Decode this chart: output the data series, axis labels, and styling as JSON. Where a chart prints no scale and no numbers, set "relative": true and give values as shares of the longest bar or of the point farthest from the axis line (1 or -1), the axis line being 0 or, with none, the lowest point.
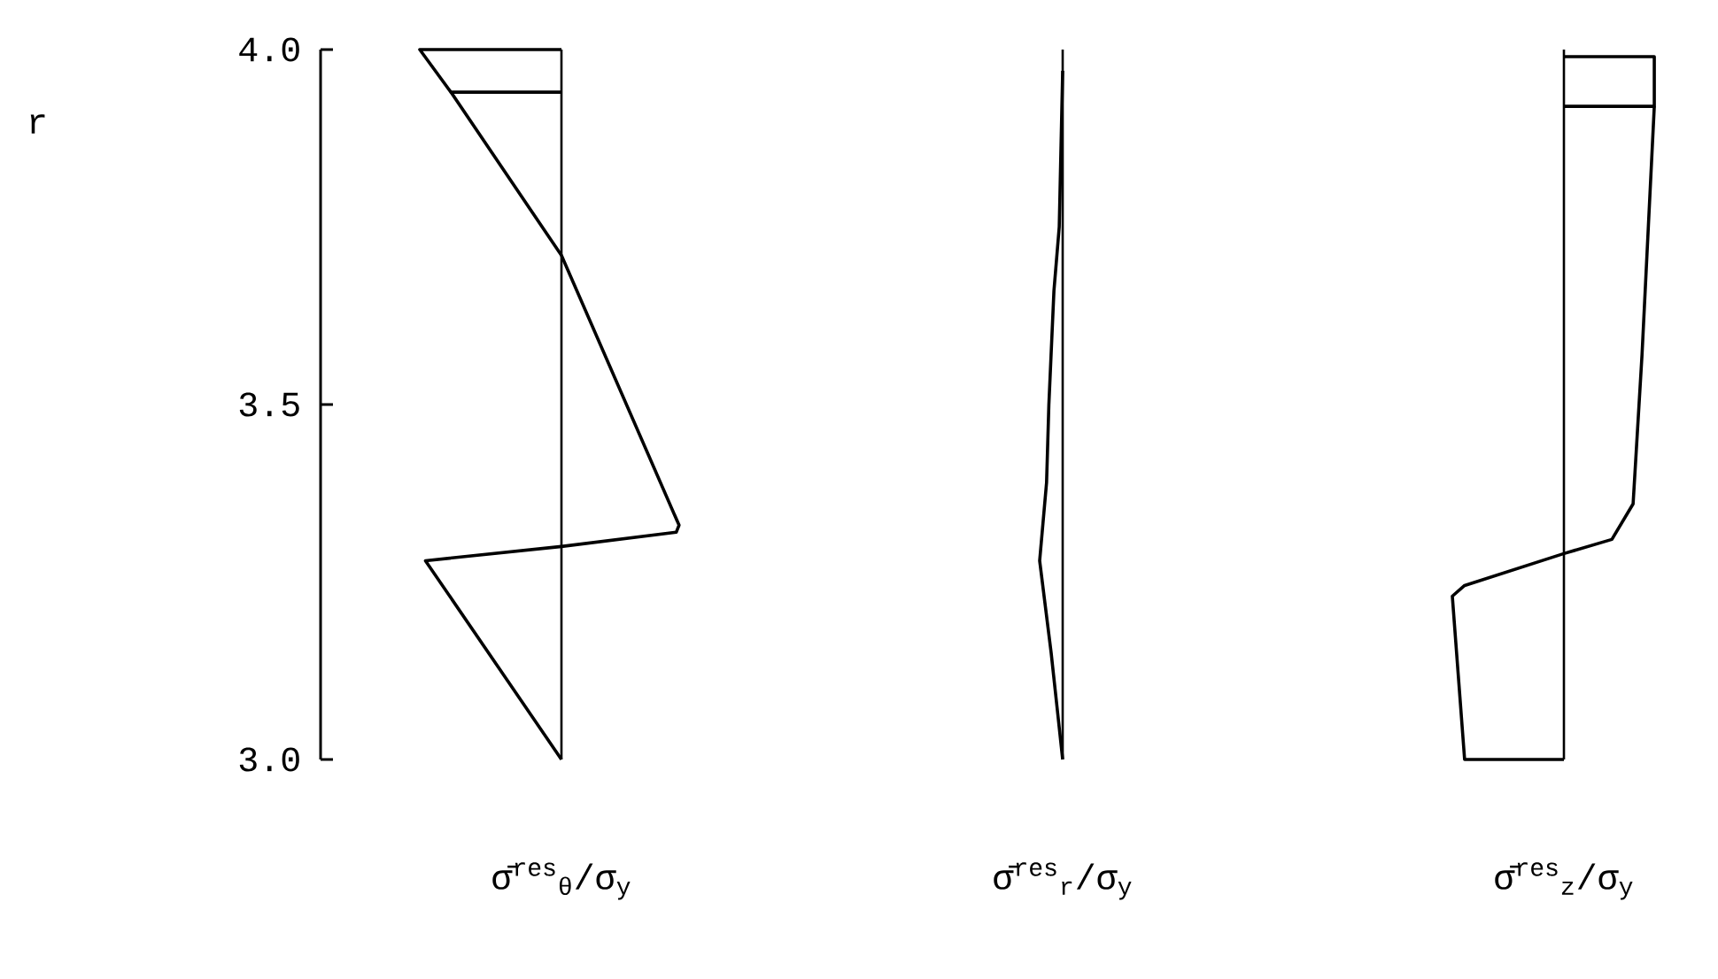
{
  "chart_data": [
    {
      "type": "line",
      "orientation": "horizontal",
      "relative": true,
      "ylabel": "r",
      "xlabel": "σ̄$^{res}$$_{θ}$/σ$_{y}$",
      "ylim": [
        3.0,
        4.0
      ],
      "yticks": [
        {
          "value": 3.0,
          "label": "3.0"
        },
        {
          "value": 3.5,
          "label": "3.5"
        },
        {
          "value": 4.0,
          "label": "4.0"
        }
      ],
      "tick_labels": "y",
      "series": [
        {
          "color": "#000000",
          "values": [
            0,
            -0.78,
            -1.0,
            0
          ],
          "x": [
            3.94,
            3.94,
            4.0,
            4.0
          ]
        },
        {
          "color": "#000000",
          "values": [
            -0.78,
            0,
            0.83,
            0.81,
            0,
            -0.96,
            0
          ],
          "x": [
            3.94,
            3.71,
            3.33,
            3.32,
            3.3,
            3.28,
            3.0
          ]
        }
      ]
    },
    {
      "type": "line",
      "orientation": "horizontal",
      "relative": true,
      "xlabel": "σ̄$^{res}$$_{r}$/σ$_{y}$",
      "ylim": [
        3.0,
        4.0
      ],
      "tick_labels": false,
      "series": [
        {
          "color": "#000000",
          "values": [
            0,
            -0.15,
            -0.38,
            -0.6,
            -0.7,
            -1.0,
            -0.5,
            -0.2,
            0
          ],
          "x": [
            3.97,
            3.75,
            3.66,
            3.5,
            3.39,
            3.28,
            3.15,
            3.06,
            3.0
          ]
        }
      ]
    },
    {
      "type": "line",
      "orientation": "horizontal",
      "relative": true,
      "xlabel": "σ̄$^{res}$$_{z}$/σ$_{y}$",
      "ylim": [
        3.0,
        4.0
      ],
      "tick_labels": false,
      "series": [
        {
          "color": "#000000",
          "values": [
            0,
            0.81,
            0.81,
            0
          ],
          "x": [
            3.92,
            3.92,
            3.99,
            3.99
          ]
        },
        {
          "color": "#000000",
          "values": [
            0.81,
            0.7,
            0.62,
            0.43,
            0,
            -0.89,
            -1.0,
            -0.89,
            0
          ],
          "x": [
            3.92,
            3.57,
            3.36,
            3.31,
            3.29,
            3.245,
            3.23,
            3.0,
            3.0
          ]
        }
      ]
    }
  ]
}
